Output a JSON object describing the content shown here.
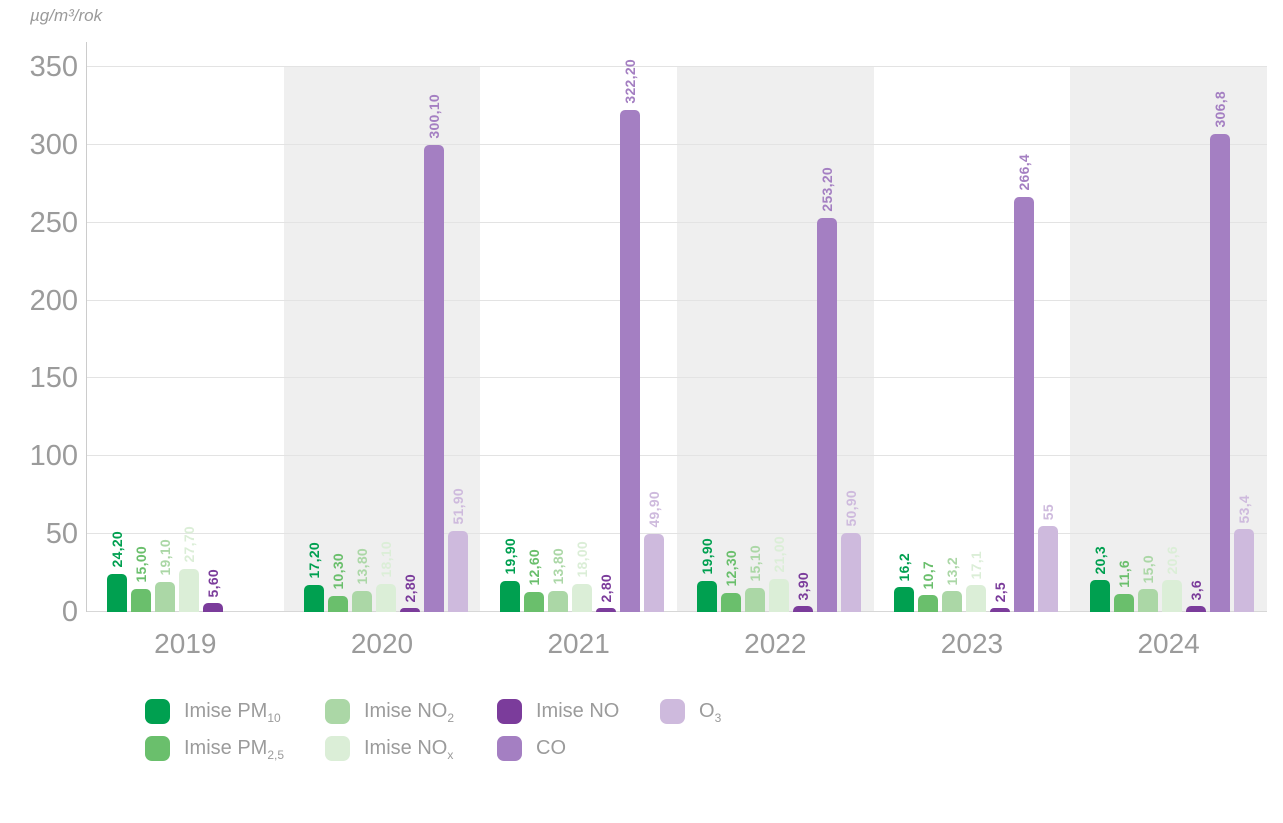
{
  "chart_data": {
    "type": "bar",
    "ylabel": "µg/m³/rok",
    "ylim": [
      0,
      350
    ],
    "yticks": [
      0,
      50,
      100,
      150,
      200,
      250,
      300,
      350
    ],
    "grid": true,
    "categories": [
      "2019",
      "2020",
      "2021",
      "2022",
      "2023",
      "2024"
    ],
    "shaded_category_indexes": [
      1,
      3,
      5
    ],
    "series": [
      {
        "name": "Imise PM10",
        "label_base": "Imise PM",
        "label_sub": "10",
        "color": "#00a050",
        "values": [
          24.2,
          17.2,
          19.9,
          19.9,
          16.2,
          20.3
        ],
        "labels": [
          "24,20",
          "17,20",
          "19,90",
          "19,90",
          "16,2",
          "20,3"
        ]
      },
      {
        "name": "Imise PM2,5",
        "label_base": "Imise PM",
        "label_sub": "2,5",
        "color": "#6abf6c",
        "values": [
          15.0,
          10.3,
          12.6,
          12.3,
          10.7,
          11.6
        ],
        "labels": [
          "15,00",
          "10,30",
          "12,60",
          "12,30",
          "10,7",
          "11,6"
        ]
      },
      {
        "name": "Imise NO2",
        "label_base": "Imise NO",
        "label_sub": "2",
        "color": "#abd7a6",
        "values": [
          19.1,
          13.8,
          13.8,
          15.1,
          13.2,
          15.0
        ],
        "labels": [
          "19,10",
          "13,80",
          "13,80",
          "15,10",
          "13,2",
          "15,0"
        ]
      },
      {
        "name": "Imise NOx",
        "label_base": "Imise NO",
        "label_sub": "x",
        "color": "#dbeed7",
        "values": [
          27.7,
          18.1,
          18.0,
          21.0,
          17.1,
          20.6
        ],
        "labels": [
          "27,70",
          "18,10",
          "18,00",
          "21,00",
          "17,1",
          "20,6"
        ]
      },
      {
        "name": "Imise NO",
        "label_base": "Imise NO",
        "label_sub": "",
        "color": "#7b3c9b",
        "values": [
          5.6,
          2.8,
          2.8,
          3.9,
          2.5,
          3.6
        ],
        "labels": [
          "5,60",
          "2,80",
          "2,80",
          "3,90",
          "2,5",
          "3,6"
        ]
      },
      {
        "name": "CO",
        "label_base": "CO",
        "label_sub": "",
        "color": "#a47fc2",
        "values": [
          null,
          300.1,
          322.2,
          253.2,
          266.4,
          306.8
        ],
        "labels": [
          null,
          "300,10",
          "322,20",
          "253,20",
          "266,4",
          "306,8"
        ]
      },
      {
        "name": "O3",
        "label_base": "O",
        "label_sub": "3",
        "color": "#cebadd",
        "values": [
          null,
          51.9,
          49.9,
          50.9,
          55,
          53.4
        ],
        "labels": [
          null,
          "51,90",
          "49,90",
          "50,90",
          "55",
          "53,4"
        ]
      }
    ],
    "legend_position": "bottom",
    "legend_columns": [
      [
        0,
        1
      ],
      [
        2,
        3
      ],
      [
        4,
        5
      ],
      [
        6
      ]
    ]
  },
  "layout_colors": {
    "band": "#efefef",
    "gridline": "#e3e3e3",
    "axis_text": "#9b9b9b"
  }
}
